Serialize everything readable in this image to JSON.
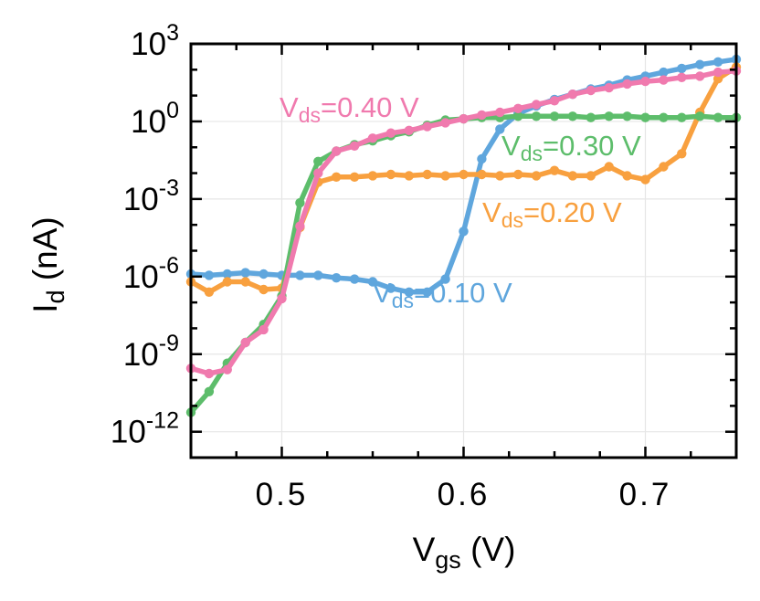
{
  "chart_data": {
    "type": "line",
    "title": "",
    "xlabel": {
      "main": "V",
      "sub": "gs",
      "unit": " (V)"
    },
    "ylabel": {
      "main": "I",
      "sub": "d",
      "unit": " (nA)"
    },
    "xscale": "linear",
    "yscale": "log",
    "xlim": [
      0.45,
      0.75
    ],
    "ylim_log10": [
      -13,
      3
    ],
    "grid": true,
    "legend": "inline",
    "x_ticks": [
      {
        "value": 0.5,
        "label": "0.5"
      },
      {
        "value": 0.6,
        "label": "0.6"
      },
      {
        "value": 0.7,
        "label": "0.7"
      }
    ],
    "y_ticks": [
      {
        "exp": 3,
        "base": "10",
        "sup": "3"
      },
      {
        "exp": 0,
        "base": "10",
        "sup": "0"
      },
      {
        "exp": -3,
        "base": "10",
        "sup": "-3"
      },
      {
        "exp": -6,
        "base": "10",
        "sup": "-6"
      },
      {
        "exp": -9,
        "base": "10",
        "sup": "-9"
      },
      {
        "exp": -12,
        "base": "10",
        "sup": "-12"
      }
    ],
    "x": [
      0.45,
      0.46,
      0.47,
      0.48,
      0.49,
      0.5,
      0.51,
      0.52,
      0.53,
      0.54,
      0.55,
      0.56,
      0.57,
      0.58,
      0.59,
      0.6,
      0.61,
      0.62,
      0.63,
      0.64,
      0.65,
      0.66,
      0.67,
      0.68,
      0.69,
      0.7,
      0.71,
      0.72,
      0.73,
      0.74,
      0.75
    ],
    "series": [
      {
        "name": "Vds=0.10 V",
        "label": {
          "main": "V",
          "sub": "ds",
          "rest": "=0.10 V"
        },
        "color": "#5fa6dd",
        "log10_values": [
          -5.9,
          -5.95,
          -5.9,
          -5.85,
          -5.9,
          -5.95,
          -5.95,
          -5.95,
          -6.05,
          -6.1,
          -6.2,
          -6.45,
          -6.6,
          -6.6,
          -6.1,
          -4.25,
          -1.45,
          -0.3,
          0.3,
          0.6,
          0.85,
          1.05,
          1.25,
          1.4,
          1.6,
          1.75,
          1.9,
          2.05,
          2.2,
          2.3,
          2.4
        ]
      },
      {
        "name": "Vds=0.20 V",
        "label": {
          "main": "V",
          "sub": "ds",
          "rest": "=0.20 V"
        },
        "color": "#f8a03f",
        "log10_values": [
          -6.2,
          -6.6,
          -6.2,
          -6.2,
          -6.5,
          -6.45,
          -4.1,
          -2.35,
          -2.15,
          -2.15,
          -2.1,
          -2.05,
          -2.1,
          -2.05,
          -2.1,
          -2.05,
          -2.05,
          -2.1,
          -2.05,
          -2.1,
          -1.9,
          -2.1,
          -2.1,
          -1.75,
          -2.1,
          -2.25,
          -1.75,
          -1.25,
          0.35,
          1.65,
          2.1
        ]
      },
      {
        "name": "Vds=0.30 V",
        "label": {
          "main": "V",
          "sub": "ds",
          "rest": "=0.30 V"
        },
        "color": "#5dbd6b",
        "log10_values": [
          -11.25,
          -10.45,
          -9.35,
          -8.55,
          -7.85,
          -6.75,
          -3.15,
          -1.55,
          -1.15,
          -0.9,
          -0.75,
          -0.55,
          -0.4,
          -0.15,
          0.05,
          0.1,
          0.15,
          0.15,
          0.2,
          0.2,
          0.2,
          0.2,
          0.15,
          0.2,
          0.2,
          0.15,
          0.15,
          0.15,
          0.2,
          0.15,
          0.15
        ]
      },
      {
        "name": "Vds=0.40 V",
        "label": {
          "main": "V",
          "sub": "ds",
          "rest": "=0.40 V"
        },
        "color": "#f07aae",
        "log10_values": [
          -9.55,
          -9.75,
          -9.6,
          -8.55,
          -8.05,
          -6.85,
          -4.05,
          -2.0,
          -1.15,
          -0.95,
          -0.65,
          -0.45,
          -0.35,
          -0.2,
          -0.05,
          0.1,
          0.25,
          0.35,
          0.5,
          0.65,
          0.8,
          1.05,
          1.2,
          1.3,
          1.45,
          1.55,
          1.6,
          1.7,
          1.75,
          1.9,
          1.95
        ]
      }
    ]
  }
}
